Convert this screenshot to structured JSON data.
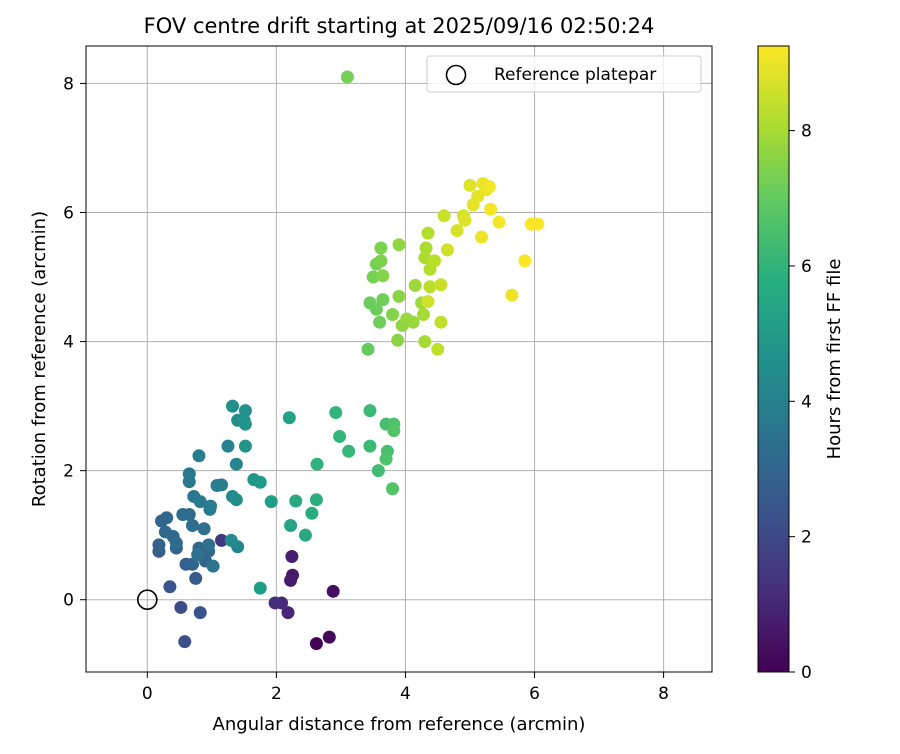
{
  "chart_data": {
    "type": "scatter",
    "title": "FOV centre drift starting at 2025/09/16 02:50:24",
    "xlabel": "Angular distance from reference (arcmin)",
    "ylabel": "Rotation from reference (arcmin)",
    "xlim": [
      -0.95,
      8.75
    ],
    "ylim": [
      -1.12,
      8.58
    ],
    "xticks": [
      0,
      2,
      4,
      6,
      8
    ],
    "yticks": [
      0,
      2,
      4,
      6,
      8
    ],
    "grid": true,
    "legend": {
      "placement": "top-right",
      "entries": [
        "Reference platepar"
      ]
    },
    "reference_point": {
      "label": "Reference platepar",
      "x": 0,
      "y": 0
    },
    "colorbar": {
      "label": "Hours from first FF file",
      "colormap": "viridis",
      "range": [
        0,
        9.25
      ],
      "ticks": [
        0,
        2,
        4,
        6,
        8
      ]
    },
    "points": [
      [
        2.62,
        -0.68,
        0.1
      ],
      [
        2.82,
        -0.58,
        0.2
      ],
      [
        2.88,
        0.13,
        0.4
      ],
      [
        2.25,
        0.38,
        0.6
      ],
      [
        2.22,
        0.3,
        0.7
      ],
      [
        2.24,
        0.67,
        0.8
      ],
      [
        2.18,
        -0.2,
        1.0
      ],
      [
        2.08,
        -0.05,
        1.1
      ],
      [
        1.98,
        -0.05,
        1.2
      ],
      [
        1.15,
        0.92,
        1.6
      ],
      [
        0.52,
        -0.12,
        2.2
      ],
      [
        0.58,
        -0.65,
        2.3
      ],
      [
        0.82,
        -0.2,
        2.4
      ],
      [
        0.35,
        0.2,
        2.5
      ],
      [
        0.75,
        0.33,
        2.6
      ],
      [
        0.18,
        0.75,
        2.7
      ],
      [
        0.45,
        0.8,
        2.8
      ],
      [
        0.6,
        0.55,
        2.8
      ],
      [
        0.7,
        0.55,
        2.9
      ],
      [
        0.9,
        0.6,
        3.0
      ],
      [
        0.8,
        0.8,
        3.0
      ],
      [
        0.95,
        0.75,
        3.1
      ],
      [
        0.18,
        0.85,
        2.9
      ],
      [
        0.4,
        0.98,
        3.1
      ],
      [
        0.22,
        1.22,
        3.0
      ],
      [
        0.3,
        1.27,
        3.0
      ],
      [
        0.28,
        1.05,
        3.1
      ],
      [
        0.45,
        0.88,
        3.2
      ],
      [
        0.55,
        1.32,
        3.2
      ],
      [
        0.65,
        1.32,
        3.3
      ],
      [
        0.7,
        1.15,
        3.3
      ],
      [
        0.88,
        1.1,
        3.4
      ],
      [
        0.95,
        0.85,
        3.4
      ],
      [
        0.78,
        0.7,
        3.5
      ],
      [
        1.02,
        0.52,
        3.6
      ],
      [
        0.72,
        1.6,
        3.6
      ],
      [
        0.65,
        1.83,
        3.7
      ],
      [
        0.65,
        1.95,
        3.7
      ],
      [
        0.82,
        1.52,
        3.8
      ],
      [
        0.97,
        1.4,
        3.8
      ],
      [
        0.98,
        1.45,
        3.9
      ],
      [
        1.08,
        1.77,
        3.9
      ],
      [
        1.15,
        1.78,
        4.0
      ],
      [
        0.8,
        2.23,
        4.0
      ],
      [
        1.25,
        2.38,
        4.1
      ],
      [
        1.38,
        2.1,
        4.2
      ],
      [
        1.4,
        0.82,
        4.3
      ],
      [
        1.3,
        0.92,
        4.4
      ],
      [
        1.32,
        1.6,
        4.4
      ],
      [
        1.38,
        1.55,
        4.5
      ],
      [
        1.32,
        3.0,
        4.6
      ],
      [
        1.4,
        2.78,
        4.6
      ],
      [
        1.52,
        2.93,
        4.7
      ],
      [
        1.5,
        2.78,
        4.7
      ],
      [
        1.52,
        2.72,
        4.8
      ],
      [
        1.52,
        2.38,
        4.8
      ],
      [
        1.65,
        1.86,
        4.9
      ],
      [
        1.75,
        1.82,
        5.0
      ],
      [
        1.75,
        0.18,
        5.1
      ],
      [
        1.92,
        1.52,
        5.2
      ],
      [
        2.2,
        2.82,
        5.3
      ],
      [
        2.22,
        1.15,
        5.4
      ],
      [
        2.3,
        1.53,
        5.5
      ],
      [
        2.45,
        1.0,
        5.6
      ],
      [
        2.55,
        1.34,
        5.7
      ],
      [
        2.62,
        1.55,
        5.8
      ],
      [
        2.63,
        2.1,
        5.9
      ],
      [
        2.92,
        2.9,
        6.0
      ],
      [
        2.98,
        2.53,
        6.1
      ],
      [
        3.12,
        2.3,
        6.2
      ],
      [
        3.45,
        2.93,
        6.3
      ],
      [
        3.45,
        2.38,
        6.3
      ],
      [
        3.58,
        2.0,
        6.4
      ],
      [
        3.7,
        2.72,
        6.5
      ],
      [
        3.72,
        2.3,
        6.5
      ],
      [
        3.7,
        2.18,
        6.6
      ],
      [
        3.82,
        2.72,
        6.6
      ],
      [
        3.82,
        2.62,
        6.7
      ],
      [
        3.8,
        1.72,
        6.7
      ],
      [
        3.42,
        3.88,
        7.0
      ],
      [
        3.45,
        4.6,
        7.1
      ],
      [
        3.55,
        4.5,
        7.1
      ],
      [
        3.6,
        4.3,
        7.2
      ],
      [
        3.65,
        4.65,
        7.2
      ],
      [
        3.5,
        5.0,
        7.3
      ],
      [
        3.55,
        5.2,
        7.3
      ],
      [
        3.62,
        5.45,
        7.4
      ],
      [
        3.62,
        5.25,
        7.4
      ],
      [
        3.65,
        5.02,
        7.5
      ],
      [
        3.8,
        4.42,
        7.5
      ],
      [
        3.88,
        4.02,
        7.6
      ],
      [
        3.9,
        4.7,
        7.6
      ],
      [
        3.9,
        5.5,
        7.7
      ],
      [
        3.95,
        4.25,
        7.7
      ],
      [
        4.02,
        4.35,
        7.8
      ],
      [
        4.12,
        4.3,
        7.8
      ],
      [
        4.15,
        4.87,
        7.9
      ],
      [
        4.25,
        4.6,
        7.9
      ],
      [
        4.28,
        4.42,
        8.0
      ],
      [
        4.3,
        4.0,
        8.0
      ],
      [
        4.3,
        5.3,
        8.1
      ],
      [
        4.32,
        5.45,
        8.1
      ],
      [
        4.35,
        5.68,
        8.2
      ],
      [
        4.38,
        5.12,
        8.2
      ],
      [
        4.38,
        4.85,
        8.3
      ],
      [
        4.45,
        5.25,
        8.3
      ],
      [
        4.5,
        3.88,
        8.4
      ],
      [
        4.55,
        4.3,
        8.4
      ],
      [
        4.55,
        4.88,
        8.5
      ],
      [
        4.6,
        5.95,
        8.5
      ],
      [
        4.65,
        5.42,
        8.6
      ],
      [
        3.1,
        8.1,
        7.3
      ],
      [
        4.35,
        4.62,
        8.6
      ],
      [
        4.8,
        5.72,
        8.7
      ],
      [
        4.9,
        5.95,
        8.7
      ],
      [
        4.92,
        5.88,
        8.8
      ],
      [
        5.0,
        6.42,
        8.8
      ],
      [
        5.05,
        6.12,
        8.9
      ],
      [
        5.12,
        6.25,
        8.9
      ],
      [
        5.18,
        5.62,
        9.0
      ],
      [
        5.2,
        6.45,
        9.0
      ],
      [
        5.25,
        6.35,
        9.0
      ],
      [
        5.3,
        6.4,
        9.1
      ],
      [
        5.32,
        6.05,
        9.1
      ],
      [
        5.45,
        5.85,
        9.1
      ],
      [
        5.65,
        4.72,
        9.0
      ],
      [
        5.85,
        5.25,
        9.2
      ],
      [
        5.95,
        5.82,
        9.2
      ],
      [
        6.05,
        5.82,
        9.2
      ]
    ]
  }
}
